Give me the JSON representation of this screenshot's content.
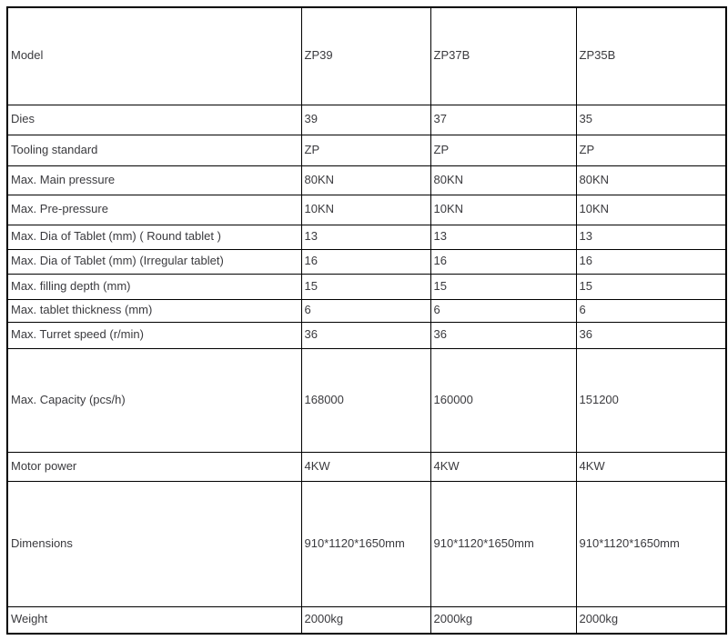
{
  "colors": {
    "background": "#ffffff",
    "table_border": "#000000",
    "text": "#3a3a3e"
  },
  "table": {
    "rows": [
      {
        "label": "Model",
        "values": [
          "ZP39",
          "ZP37B",
          "ZP35B"
        ]
      },
      {
        "label": "Dies",
        "values": [
          "39",
          "37",
          "35"
        ]
      },
      {
        "label": "Tooling standard",
        "values": [
          "ZP",
          "ZP",
          "ZP"
        ]
      },
      {
        "label": "Max. Main pressure",
        "values": [
          "80KN",
          "80KN",
          "80KN"
        ]
      },
      {
        "label": "Max. Pre-pressure",
        "values": [
          "10KN",
          "10KN",
          "10KN"
        ]
      },
      {
        "label": "Max. Dia of Tablet (mm) ( Round tablet )",
        "values": [
          "13",
          "13",
          "13"
        ]
      },
      {
        "label": "Max. Dia of Tablet (mm) (Irregular tablet)",
        "values": [
          "16",
          "16",
          "16"
        ]
      },
      {
        "label": "Max. filling depth (mm)",
        "values": [
          "15",
          "15",
          "15"
        ]
      },
      {
        "label": "Max. tablet thickness (mm)",
        "values": [
          "6",
          "6",
          "6"
        ]
      },
      {
        "label": "Max. Turret speed (r/min)",
        "values": [
          "36",
          "36",
          "36"
        ]
      },
      {
        "label": "Max. Capacity (pcs/h)",
        "values": [
          "168000",
          "160000",
          "151200"
        ]
      },
      {
        "label": "Motor power",
        "values": [
          "4KW",
          "4KW",
          "4KW"
        ]
      },
      {
        "label": "Dimensions",
        "values": [
          "910*1120*1650mm",
          "910*1120*1650mm",
          "910*1120*1650mm"
        ]
      },
      {
        "label": "Weight",
        "values": [
          "2000kg",
          "2000kg",
          "2000kg"
        ]
      }
    ]
  }
}
